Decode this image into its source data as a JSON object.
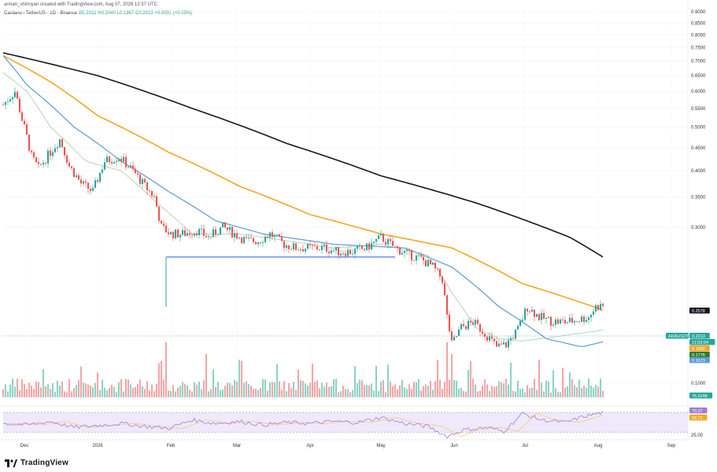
{
  "header": {
    "byline": "arman_shirinyan created with TradingView.com, Aug 07, 2026 12:57 UTC",
    "symbol": "Cardano / TetherUS · 1D · Binance",
    "ohlc": "O0.2012 H0.2040 L0.1987 C0.2013 +0.0001 (+0.05%)"
  },
  "brand": {
    "name": "TradingView",
    "icon": "tradingview-logo-icon"
  },
  "colors": {
    "up": "#26a69a",
    "down": "#ef5350",
    "vol_up": "#8dd3c7",
    "vol_down": "#f4a6a6",
    "ma200": "#131722",
    "ma100": "#f5a623",
    "ma50": "#5b9bd5",
    "ma20": "#8fbc8f",
    "support": "#2962ff",
    "rsi": "#9c7fd4"
  },
  "chart_data": [
    {
      "type": "candlestick",
      "pair": "ADAUSDT",
      "y_axis": {
        "scale": "log",
        "ticks": [
          0.9,
          0.85,
          0.8,
          0.75,
          0.7,
          0.65,
          0.6,
          0.55,
          0.5,
          0.45,
          0.4,
          0.35,
          0.3,
          0.1
        ],
        "tick_labels": [
          "0.9000",
          "0.8500",
          "0.8000",
          "0.7500",
          "0.7000",
          "0.6500",
          "0.6000",
          "0.5500",
          "0.5000",
          "0.4500",
          "0.4000",
          "0.3500",
          "0.3000",
          "0.1000"
        ]
      },
      "x_axis": {
        "labels": [
          "Dec",
          "2026",
          "Feb",
          "Mar",
          "Apr",
          "May",
          "Jun",
          "Jul",
          "Aug",
          "Sep"
        ],
        "label_days": [
          9,
          40,
          71,
          99,
          130,
          160,
          191,
          221,
          252,
          283
        ]
      },
      "price_anchors": [
        [
          0,
          0.56
        ],
        [
          5,
          0.6
        ],
        [
          8,
          0.52
        ],
        [
          12,
          0.43
        ],
        [
          15,
          0.405
        ],
        [
          20,
          0.44
        ],
        [
          24,
          0.47
        ],
        [
          28,
          0.41
        ],
        [
          33,
          0.375
        ],
        [
          38,
          0.36
        ],
        [
          43,
          0.42
        ],
        [
          49,
          0.43
        ],
        [
          55,
          0.4
        ],
        [
          60,
          0.37
        ],
        [
          64,
          0.35
        ],
        [
          67,
          0.3
        ],
        [
          71,
          0.29
        ],
        [
          76,
          0.29
        ],
        [
          82,
          0.295
        ],
        [
          87,
          0.285
        ],
        [
          93,
          0.3
        ],
        [
          98,
          0.29
        ],
        [
          103,
          0.28
        ],
        [
          108,
          0.28
        ],
        [
          113,
          0.29
        ],
        [
          119,
          0.275
        ],
        [
          124,
          0.27
        ],
        [
          130,
          0.27
        ],
        [
          136,
          0.27
        ],
        [
          142,
          0.265
        ],
        [
          148,
          0.265
        ],
        [
          154,
          0.27
        ],
        [
          160,
          0.285
        ],
        [
          166,
          0.27
        ],
        [
          171,
          0.262
        ],
        [
          177,
          0.255
        ],
        [
          182,
          0.245
        ],
        [
          186,
          0.23
        ],
        [
          188,
          0.19
        ],
        [
          190,
          0.165
        ],
        [
          194,
          0.18
        ],
        [
          199,
          0.185
        ],
        [
          204,
          0.175
        ],
        [
          209,
          0.163
        ],
        [
          213,
          0.165
        ],
        [
          218,
          0.178
        ],
        [
          222,
          0.2
        ],
        [
          227,
          0.19
        ],
        [
          232,
          0.186
        ],
        [
          238,
          0.185
        ],
        [
          243,
          0.187
        ],
        [
          248,
          0.19
        ],
        [
          251,
          0.2
        ],
        [
          254,
          0.2013
        ]
      ],
      "moving_averages": [
        {
          "name": "MA200",
          "label": "0.2578",
          "color": "#131722",
          "points": [
            [
              0,
              0.73
            ],
            [
              40,
              0.65
            ],
            [
              80,
              0.55
            ],
            [
              120,
              0.46
            ],
            [
              160,
              0.39
            ],
            [
              200,
              0.34
            ],
            [
              240,
              0.285
            ],
            [
              254,
              0.2578
            ]
          ]
        },
        {
          "name": "MA100",
          "label": "0.1968",
          "color": "#f5a623",
          "points": [
            [
              0,
              0.72
            ],
            [
              20,
              0.63
            ],
            [
              40,
              0.53
            ],
            [
              70,
              0.44
            ],
            [
              100,
              0.37
            ],
            [
              130,
              0.32
            ],
            [
              160,
              0.29
            ],
            [
              190,
              0.27
            ],
            [
              220,
              0.225
            ],
            [
              254,
              0.1968
            ]
          ]
        },
        {
          "name": "MA50",
          "label": "0.1673",
          "color": "#5b9bd5",
          "points": [
            [
              0,
              0.72
            ],
            [
              10,
              0.62
            ],
            [
              30,
              0.5
            ],
            [
              50,
              0.42
            ],
            [
              70,
              0.36
            ],
            [
              90,
              0.31
            ],
            [
              110,
              0.29
            ],
            [
              140,
              0.275
            ],
            [
              170,
              0.27
            ],
            [
              190,
              0.245
            ],
            [
              210,
              0.2
            ],
            [
              230,
              0.17
            ],
            [
              245,
              0.163
            ],
            [
              254,
              0.1673
            ]
          ]
        },
        {
          "name": "MA20",
          "label": "0.1776",
          "color": "#8fbc8f",
          "points": [
            [
              0,
              0.66
            ],
            [
              10,
              0.6
            ],
            [
              20,
              0.5
            ],
            [
              35,
              0.42
            ],
            [
              50,
              0.4
            ],
            [
              65,
              0.34
            ],
            [
              80,
              0.29
            ],
            [
              100,
              0.29
            ],
            [
              120,
              0.28
            ],
            [
              140,
              0.27
            ],
            [
              160,
              0.275
            ],
            [
              180,
              0.26
            ],
            [
              190,
              0.215
            ],
            [
              200,
              0.18
            ],
            [
              210,
              0.17
            ],
            [
              220,
              0.168
            ],
            [
              235,
              0.172
            ],
            [
              254,
              0.1776
            ]
          ]
        }
      ],
      "support_line": {
        "from_day": 69,
        "to_day": 166,
        "price": 0.2578
      },
      "price_badges": [
        {
          "text": "0.2578",
          "color": "#131722"
        },
        {
          "text": "ADAUSDT",
          "color": "#26a69a"
        },
        {
          "text": "0.2013",
          "color": "#26a69a"
        },
        {
          "text": "11:03:04",
          "color": "#26a69a"
        },
        {
          "text": "0.1968",
          "color": "#f5a623"
        },
        {
          "text": "0.1776",
          "color": "#2e7d32"
        },
        {
          "text": "0.1673",
          "color": "#5b9bd5"
        },
        {
          "text": "76.524K",
          "color": "#26a69a"
        }
      ],
      "volume": {
        "last_label": "76.524K"
      },
      "rsi": {
        "levels": [
          70,
          30
        ],
        "tick_label": "25.00",
        "current": "70.37",
        "ma_value": "56.71",
        "anchors": [
          [
            0,
            48
          ],
          [
            10,
            45
          ],
          [
            20,
            52
          ],
          [
            30,
            40
          ],
          [
            40,
            44
          ],
          [
            50,
            48
          ],
          [
            60,
            42
          ],
          [
            70,
            38
          ],
          [
            80,
            55
          ],
          [
            90,
            48
          ],
          [
            100,
            52
          ],
          [
            110,
            45
          ],
          [
            120,
            50
          ],
          [
            130,
            48
          ],
          [
            140,
            52
          ],
          [
            150,
            50
          ],
          [
            160,
            60
          ],
          [
            170,
            48
          ],
          [
            180,
            42
          ],
          [
            188,
            22
          ],
          [
            195,
            35
          ],
          [
            205,
            40
          ],
          [
            212,
            32
          ],
          [
            220,
            68
          ],
          [
            228,
            55
          ],
          [
            238,
            50
          ],
          [
            246,
            62
          ],
          [
            254,
            70
          ]
        ]
      }
    }
  ]
}
